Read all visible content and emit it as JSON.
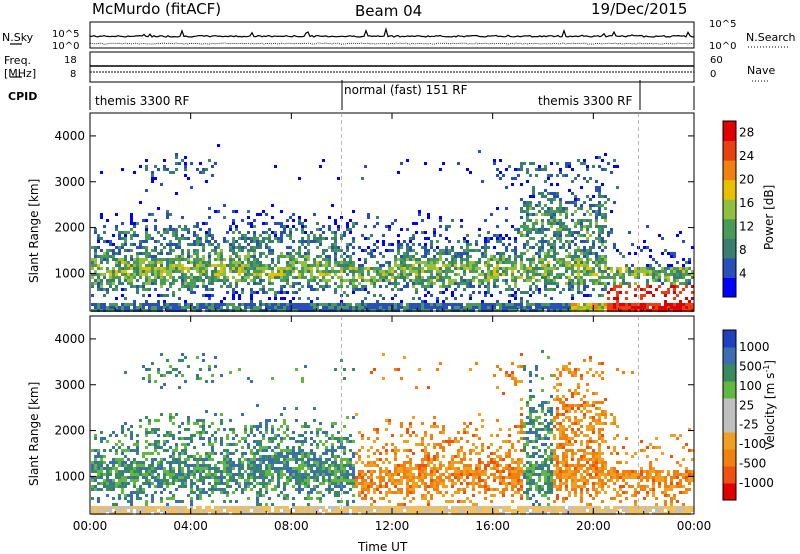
{
  "header": {
    "station": "McMurdo (fitACF)",
    "beam": "Beam 04",
    "date": "19/Dec/2015"
  },
  "panels_small": {
    "nsky_label": "N.Sky",
    "nsearch_label": "N.Search",
    "freq_label_1": "Freq.",
    "freq_label_2": "[MHz]",
    "nave_label": "Nave",
    "cpid_label": "CPID",
    "left_ticks_top": [
      "10^5",
      "10^0"
    ],
    "right_ticks_top": [
      "10^5",
      "10^0"
    ],
    "left_ticks_freq": [
      "18",
      "8"
    ],
    "right_ticks_nave": [
      "60",
      "0"
    ]
  },
  "cpid_segments": [
    "themis 3300 RF",
    "normal (fast) 151 RF",
    "themis 3300 RF"
  ],
  "colors": {
    "power": [
      "#0000ff",
      "#2850b8",
      "#3a7f6e",
      "#4a9a58",
      "#90c040",
      "#e8c000",
      "#f08010",
      "#e84010",
      "#e00000"
    ],
    "velocity_pos": [
      "#2040c0",
      "#3a6eb0",
      "#3a8a60",
      "#60b840",
      "#c0c0c0"
    ],
    "velocity_neg": [
      "#c0c0c0",
      "#f0a020",
      "#f08010",
      "#f05010",
      "#e00000"
    ],
    "ground": "#f0c060"
  },
  "chart_data": [
    {
      "type": "heatmap",
      "title": "Power",
      "xlabel": "Time UT",
      "ylabel": "Slant Range [km]",
      "xlim": [
        "00:00",
        "24:00"
      ],
      "ylim": [
        180,
        4500
      ],
      "x_ticks": [
        "00:00",
        "04:00",
        "08:00",
        "12:00",
        "16:00",
        "20:00",
        "00:00"
      ],
      "y_ticks": [
        "1000",
        "2000",
        "3000",
        "4000"
      ],
      "colorbar_label": "Power [dB]",
      "colorbar_ticks": [
        "4",
        "8",
        "12",
        "16",
        "20",
        "24",
        "28"
      ],
      "colorbar_range": [
        0,
        30
      ]
    },
    {
      "type": "heatmap",
      "title": "Velocity",
      "xlabel": "Time UT",
      "ylabel": "Slant Range [km]",
      "xlim": [
        "00:00",
        "24:00"
      ],
      "ylim": [
        180,
        4500
      ],
      "x_ticks": [
        "00:00",
        "04:00",
        "08:00",
        "12:00",
        "16:00",
        "20:00",
        "00:00"
      ],
      "y_ticks": [
        "1000",
        "2000",
        "3000",
        "4000"
      ],
      "colorbar_label": "Velocity [m s^-1]",
      "colorbar_ticks": [
        "1000",
        "500",
        "100",
        "25",
        "-25",
        "-100",
        "-500",
        "-1000"
      ]
    }
  ]
}
